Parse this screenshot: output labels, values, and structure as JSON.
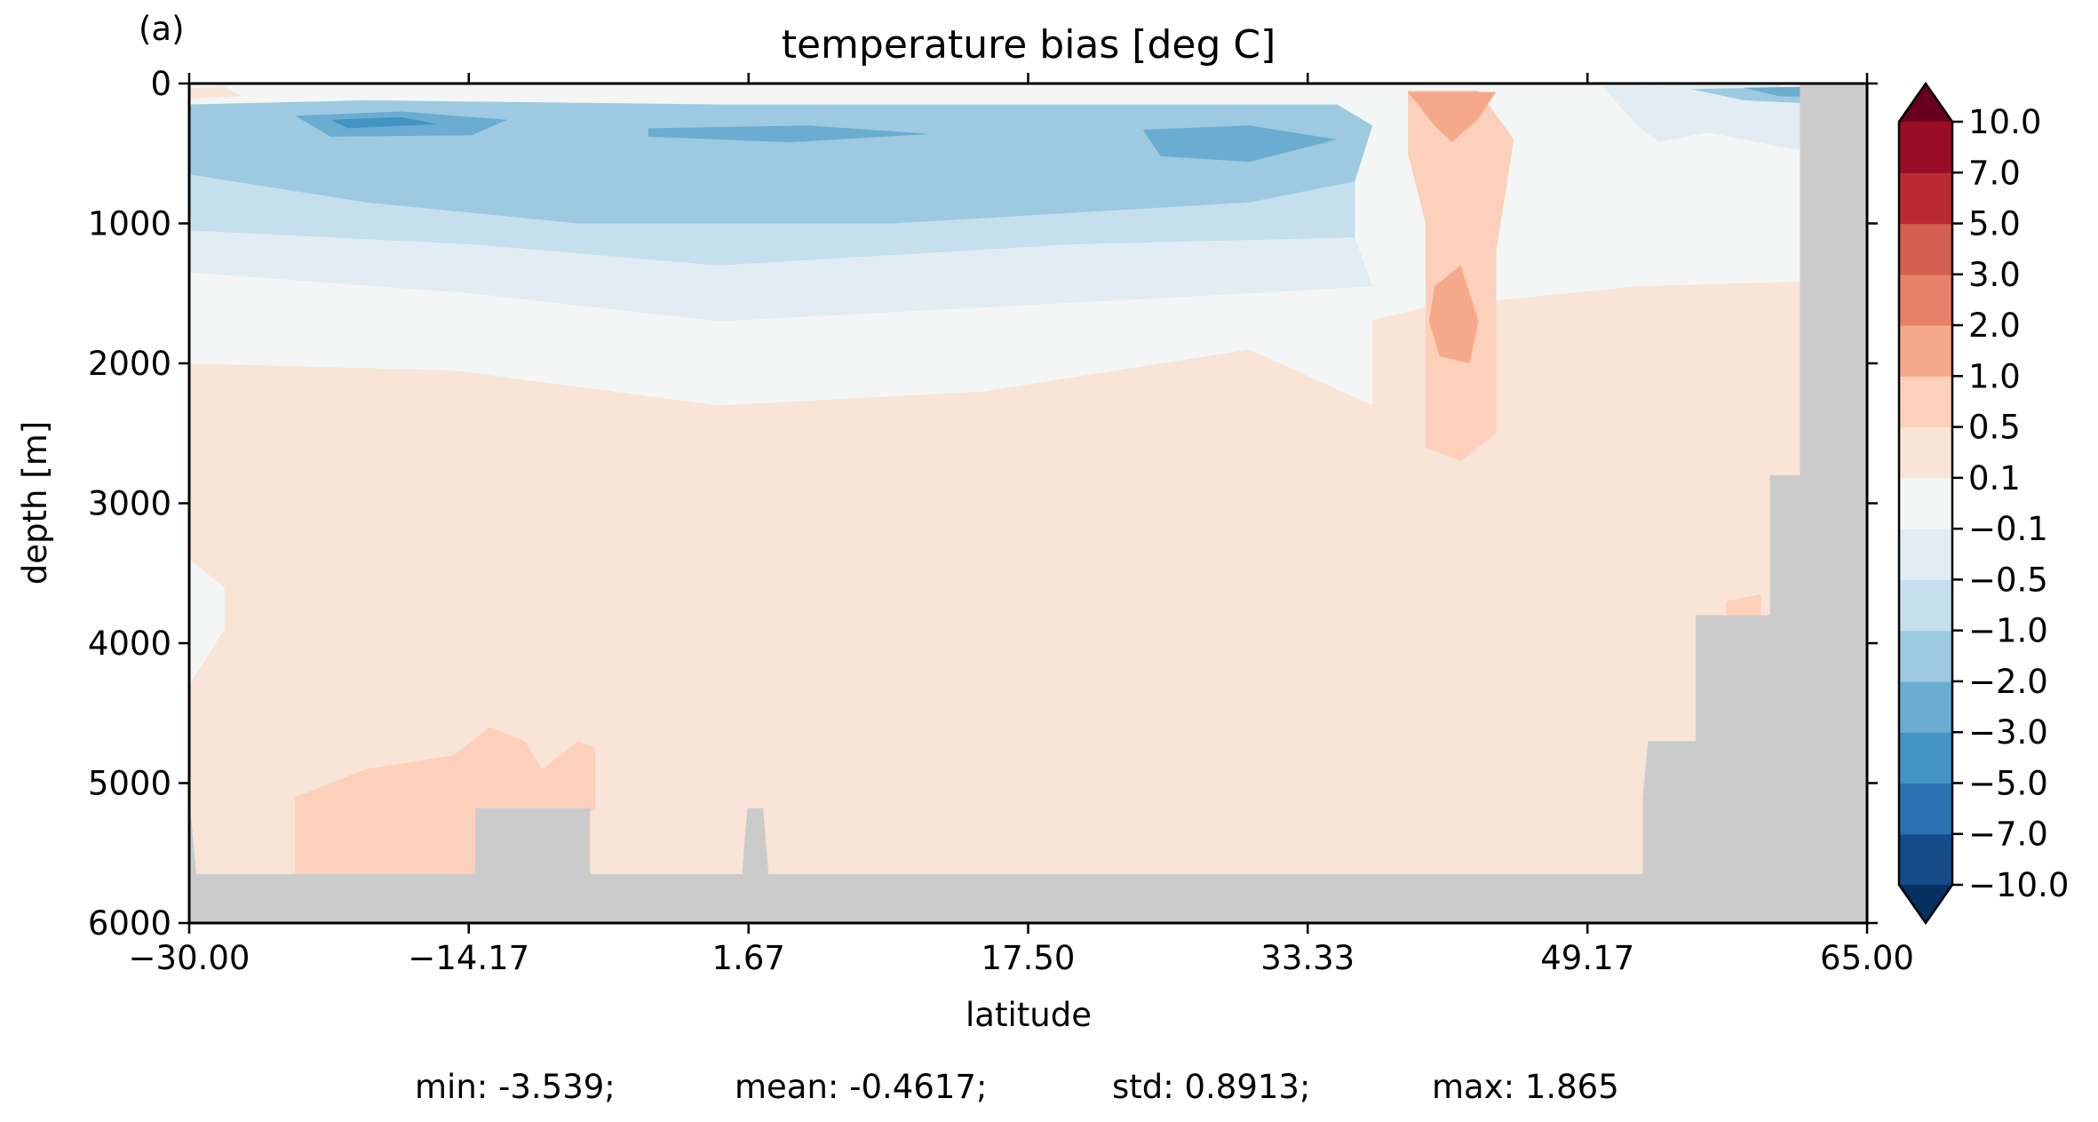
{
  "panel_label": "(a)",
  "stats": {
    "min": "min: -3.539;",
    "mean": "mean: -0.4617;",
    "std": "std: 0.8913;",
    "max": "max: 1.865"
  },
  "colors": {
    "land": "#cbcbcb",
    "levels_fill": [
      "#053061",
      "#134c88",
      "#2a71b2",
      "#4393c3",
      "#6bacd1",
      "#9dcae1",
      "#c5dfec",
      "#e1edf3",
      "#f4f6f6",
      "#f9e4d8",
      "#fcd0bb",
      "#f6a98a",
      "#e58268",
      "#d35f50",
      "#bb2a34",
      "#980d24",
      "#67001f"
    ]
  },
  "chart_data": {
    "type": "heatmap",
    "title": "temperature bias [deg C]",
    "xlabel": "latitude",
    "ylabel": "depth [m]",
    "xlim": [
      -30.0,
      65.0
    ],
    "ylim": [
      6000,
      0
    ],
    "y_inverted": true,
    "x_ticks": [
      "−30.00",
      "−14.17",
      "1.67",
      "17.50",
      "33.33",
      "49.17",
      "65.00"
    ],
    "x_tick_values": [
      -30.0,
      -14.17,
      1.67,
      17.5,
      33.33,
      49.17,
      65.0
    ],
    "y_ticks": [
      "0",
      "1000",
      "2000",
      "3000",
      "4000",
      "5000",
      "6000"
    ],
    "y_tick_values": [
      0,
      1000,
      2000,
      3000,
      4000,
      5000,
      6000
    ],
    "colorbar": {
      "levels": [
        "−10.0",
        "−7.0",
        "−5.0",
        "−3.0",
        "−2.0",
        "−1.0",
        "−0.5",
        "−0.1",
        "0.1",
        "0.5",
        "1.0",
        "2.0",
        "3.0",
        "5.0",
        "7.0",
        "10.0"
      ],
      "extend": "both",
      "colormap": "RdBu_r"
    },
    "regions": [
      {
        "name": "deep-warm-bias",
        "level_index": 9,
        "points": [
          [
            -30,
            2000
          ],
          [
            -15,
            2050
          ],
          [
            0,
            2300
          ],
          [
            15,
            2200
          ],
          [
            30,
            1900
          ],
          [
            40,
            1600
          ],
          [
            52,
            1450
          ],
          [
            65,
            1400
          ],
          [
            65,
            6000
          ],
          [
            -30,
            6000
          ]
        ]
      },
      {
        "name": "mid-depth-neutral",
        "level_index": 8,
        "points": [
          [
            -30,
            1350
          ],
          [
            -14,
            1500
          ],
          [
            0,
            1700
          ],
          [
            15,
            1600
          ],
          [
            30,
            1500
          ],
          [
            37,
            1450
          ],
          [
            37,
            2300
          ],
          [
            30,
            1900
          ],
          [
            15,
            2200
          ],
          [
            0,
            2300
          ],
          [
            -15,
            2050
          ],
          [
            -30,
            2000
          ]
        ]
      },
      {
        "name": "upper-cool-band",
        "level_index": 7,
        "points": [
          [
            -30,
            1050
          ],
          [
            -14,
            1150
          ],
          [
            0,
            1300
          ],
          [
            20,
            1150
          ],
          [
            36,
            1100
          ],
          [
            37,
            1450
          ],
          [
            30,
            1500
          ],
          [
            15,
            1600
          ],
          [
            0,
            1700
          ],
          [
            -14,
            1500
          ],
          [
            -30,
            1350
          ]
        ]
      },
      {
        "name": "thermocline-cool",
        "level_index": 6,
        "points": [
          [
            -30,
            650
          ],
          [
            -20,
            850
          ],
          [
            -8,
            1000
          ],
          [
            10,
            1000
          ],
          [
            30,
            850
          ],
          [
            36,
            700
          ],
          [
            36,
            1100
          ],
          [
            20,
            1150
          ],
          [
            0,
            1300
          ],
          [
            -14,
            1150
          ],
          [
            -30,
            1050
          ]
        ]
      },
      {
        "name": "main-cold-core",
        "level_index": 5,
        "points": [
          [
            -30,
            150
          ],
          [
            -20,
            120
          ],
          [
            0,
            150
          ],
          [
            20,
            150
          ],
          [
            35,
            150
          ],
          [
            37,
            300
          ],
          [
            36,
            700
          ],
          [
            30,
            850
          ],
          [
            10,
            1000
          ],
          [
            -8,
            1000
          ],
          [
            -20,
            850
          ],
          [
            -30,
            650
          ]
        ]
      },
      {
        "name": "southern-cold-lens",
        "level_index": 4,
        "points": [
          [
            -24,
            230
          ],
          [
            -18,
            200
          ],
          [
            -12,
            260
          ],
          [
            -14,
            370
          ],
          [
            -22,
            380
          ]
        ]
      },
      {
        "name": "southern-cold-center",
        "level_index": 3,
        "points": [
          [
            -22,
            260
          ],
          [
            -18,
            240
          ],
          [
            -16,
            290
          ],
          [
            -21,
            320
          ]
        ]
      },
      {
        "name": "equatorial-cold-lens",
        "level_index": 4,
        "points": [
          [
            -4,
            320
          ],
          [
            5,
            300
          ],
          [
            12,
            360
          ],
          [
            4,
            420
          ],
          [
            -4,
            380
          ]
        ]
      },
      {
        "name": "northern-cold-lens",
        "level_index": 4,
        "points": [
          [
            24,
            330
          ],
          [
            30,
            300
          ],
          [
            35,
            400
          ],
          [
            30,
            560
          ],
          [
            25,
            520
          ]
        ]
      },
      {
        "name": "surface-warm-patch",
        "level_index": 9,
        "points": [
          [
            -30,
            30
          ],
          [
            -28,
            20
          ],
          [
            -27,
            90
          ],
          [
            -30,
            110
          ]
        ]
      },
      {
        "name": "northern-surface-cool",
        "level_index": 7,
        "points": [
          [
            50,
            20
          ],
          [
            60,
            10
          ],
          [
            63,
            250
          ],
          [
            60,
            600
          ],
          [
            55,
            600
          ],
          [
            52,
            300
          ]
        ]
      },
      {
        "name": "northern-surface-cold",
        "level_index": 5,
        "points": [
          [
            55,
            40
          ],
          [
            63,
            20
          ],
          [
            63,
            150
          ],
          [
            58,
            120
          ]
        ]
      },
      {
        "name": "northern-surface-cold-core",
        "level_index": 4,
        "points": [
          [
            58,
            30
          ],
          [
            63,
            20
          ],
          [
            63,
            100
          ],
          [
            60,
            90
          ]
        ]
      },
      {
        "name": "subpolar-neutral",
        "level_index": 8,
        "points": [
          [
            50,
            500
          ],
          [
            56,
            350
          ],
          [
            62,
            500
          ],
          [
            63,
            1000
          ],
          [
            60,
            1400
          ],
          [
            55,
            1100
          ],
          [
            50,
            1000
          ]
        ]
      },
      {
        "name": "outflow-plume",
        "level_index": 10,
        "points": [
          [
            39,
            50
          ],
          [
            43,
            50
          ],
          [
            45,
            400
          ],
          [
            44,
            1200
          ],
          [
            44,
            2500
          ],
          [
            42,
            2700
          ],
          [
            40,
            2600
          ],
          [
            40,
            1000
          ],
          [
            39,
            500
          ]
        ]
      },
      {
        "name": "outflow-plume-core",
        "level_index": 11,
        "points": [
          [
            39,
            60
          ],
          [
            44,
            60
          ],
          [
            43,
            250
          ],
          [
            41.5,
            420
          ],
          [
            40.5,
            300
          ]
        ]
      },
      {
        "name": "outflow-deep-core",
        "level_index": 11,
        "points": [
          [
            40.5,
            1450
          ],
          [
            42,
            1300
          ],
          [
            43,
            1700
          ],
          [
            42.5,
            2000
          ],
          [
            40.8,
            1950
          ],
          [
            40.2,
            1700
          ]
        ]
      },
      {
        "name": "abyssal-warm-patch",
        "level_index": 10,
        "points": [
          [
            -24,
            6000
          ],
          [
            -24,
            5100
          ],
          [
            -20,
            4900
          ],
          [
            -15,
            4800
          ],
          [
            -13,
            4600
          ],
          [
            -11,
            4700
          ],
          [
            -10,
            4900
          ],
          [
            -8,
            4700
          ],
          [
            -7,
            4750
          ],
          [
            -7,
            5200
          ],
          [
            -10,
            5200
          ],
          [
            -13,
            5200
          ],
          [
            -14,
            6000
          ]
        ]
      },
      {
        "name": "deep-north-warm-patch",
        "level_index": 10,
        "points": [
          [
            57,
            3700
          ],
          [
            59,
            3650
          ],
          [
            59,
            3800
          ],
          [
            57,
            3800
          ]
        ]
      },
      {
        "name": "deep-west-neutral",
        "level_index": 8,
        "points": [
          [
            -30,
            3400
          ],
          [
            -28,
            3600
          ],
          [
            -28,
            3900
          ],
          [
            -30,
            4300
          ]
        ]
      }
    ],
    "land_mask": [
      {
        "name": "abyssal-floor",
        "points": [
          [
            -30,
            6000
          ],
          [
            -30,
            5650
          ],
          [
            65,
            5650
          ],
          [
            65,
            6000
          ]
        ]
      },
      {
        "name": "southern-ridge",
        "points": [
          [
            -13.8,
            5650
          ],
          [
            -13.8,
            5180
          ],
          [
            -7.3,
            5180
          ],
          [
            -7.3,
            5650
          ]
        ]
      },
      {
        "name": "equatorial-ridge",
        "points": [
          [
            1.3,
            5650
          ],
          [
            1.6,
            5180
          ],
          [
            2.5,
            5180
          ],
          [
            2.8,
            5650
          ]
        ]
      },
      {
        "name": "northern-margin",
        "points": [
          [
            52.3,
            5650
          ],
          [
            52.3,
            5100
          ],
          [
            52.6,
            4700
          ],
          [
            55.3,
            4700
          ],
          [
            55.3,
            3800
          ],
          [
            59.5,
            3800
          ],
          [
            59.5,
            2800
          ],
          [
            61.2,
            2800
          ],
          [
            61.2,
            0
          ],
          [
            65,
            0
          ],
          [
            65,
            5650
          ]
        ]
      },
      {
        "name": "western-edge",
        "points": [
          [
            -30,
            5650
          ],
          [
            -30,
            5100
          ],
          [
            -29.6,
            5650
          ]
        ]
      }
    ]
  }
}
